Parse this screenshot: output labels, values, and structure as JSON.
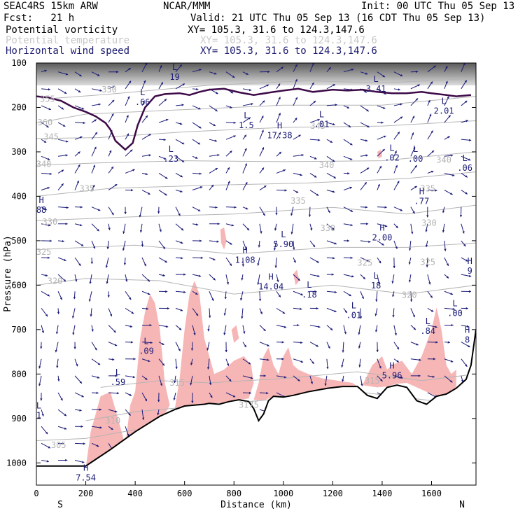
{
  "header": {
    "model": "SEAC4RS 15km ARW",
    "org": "NCAR/MMM",
    "init": "Init: 00 UTC Thu 05 Sep 13",
    "fcst": "Fcst:   21 h",
    "valid": "Valid: 21 UTC Thu 05 Sep 13 (16 CDT Thu 05 Sep 13)",
    "fields": [
      {
        "name": "Potential vorticity",
        "xy": "XY= 105.3, 31.6 to 124.3,147.6"
      },
      {
        "name": "Potential temperature",
        "xy": "XY= 105.3, 31.6 to 124.3,147.6"
      },
      {
        "name": "Horizontal wind speed",
        "xy": "XY= 105.3, 31.6 to 124.3,147.6"
      }
    ]
  },
  "colors": {
    "pv_contour": "#3d0a48",
    "theta_contour": "#b4b4b4",
    "wind_vectors": "#1a1a78",
    "shading": "#f7b6b6",
    "terrain": "#000000"
  },
  "chart_data": {
    "type": "line",
    "xlabel": "Distance (km)",
    "ylabel": "Pressure (hPa)",
    "xlim": [
      0,
      1780
    ],
    "ylim": [
      1050,
      100
    ],
    "x_ticks": [
      "0",
      "200",
      "400",
      "600",
      "800",
      "1000",
      "1200",
      "1400",
      "1600"
    ],
    "y_ticks": [
      "100",
      "200",
      "300",
      "400",
      "500",
      "600",
      "700",
      "800",
      "900",
      "1000"
    ],
    "end_labels": {
      "left": "S",
      "right": "N"
    },
    "theta_contours": [
      {
        "label": "355",
        "points": [
          [
            60,
            180
          ],
          [
            300,
            170
          ],
          [
            700,
            150
          ],
          [
            1100,
            140
          ],
          [
            1400,
            145
          ],
          [
            1780,
            135
          ]
        ]
      },
      {
        "label": "350",
        "points": [
          [
            0,
            235
          ],
          [
            200,
            215
          ],
          [
            600,
            205
          ],
          [
            1000,
            195
          ],
          [
            1400,
            195
          ],
          [
            1780,
            175
          ]
        ]
      },
      {
        "label": "345",
        "points": [
          [
            0,
            270
          ],
          [
            250,
            268
          ],
          [
            600,
            255
          ],
          [
            1000,
            245
          ],
          [
            1400,
            242
          ],
          [
            1780,
            230
          ]
        ]
      },
      {
        "label": "340",
        "points": [
          [
            0,
            330
          ],
          [
            250,
            325
          ],
          [
            600,
            320
          ],
          [
            1000,
            322
          ],
          [
            1400,
            320
          ],
          [
            1780,
            300
          ]
        ]
      },
      {
        "label": "335",
        "points": [
          [
            0,
            400
          ],
          [
            300,
            382
          ],
          [
            700,
            375
          ],
          [
            1100,
            370
          ],
          [
            1500,
            360
          ],
          [
            1780,
            345
          ]
        ]
      },
      {
        "label": "330",
        "points": [
          [
            0,
            455
          ],
          [
            400,
            446
          ],
          [
            800,
            440
          ],
          [
            1200,
            425
          ],
          [
            1500,
            440
          ],
          [
            1780,
            420
          ]
        ]
      },
      {
        "label": "325",
        "points": [
          [
            0,
            520
          ],
          [
            400,
            510
          ],
          [
            800,
            530
          ],
          [
            1200,
            515
          ],
          [
            1500,
            515
          ],
          [
            1780,
            505
          ]
        ]
      },
      {
        "label": "320",
        "points": [
          [
            0,
            600
          ],
          [
            200,
            585
          ],
          [
            500,
            590
          ],
          [
            800,
            620
          ],
          [
            1200,
            600
          ],
          [
            1500,
            620
          ],
          [
            1780,
            600
          ]
        ]
      },
      {
        "label": "315",
        "points": [
          [
            260,
            830
          ],
          [
            500,
            815
          ],
          [
            700,
            820
          ],
          [
            1000,
            810
          ],
          [
            1300,
            795
          ],
          [
            1560,
            815
          ],
          [
            1780,
            800
          ]
        ]
      },
      {
        "label": "310",
        "points": [
          [
            200,
            905
          ],
          [
            400,
            885
          ],
          [
            700,
            870
          ],
          [
            1000,
            855
          ],
          [
            1300,
            840
          ],
          [
            1600,
            860
          ],
          [
            1780,
            850
          ]
        ]
      },
      {
        "label": "305",
        "points": [
          [
            0,
            950
          ],
          [
            200,
            945
          ],
          [
            400,
            925
          ]
        ]
      }
    ],
    "theta_labels": [
      {
        "text": "355",
        "x": 45,
        "y": 181
      },
      {
        "text": "350",
        "x": 295,
        "y": 160
      },
      {
        "text": "360",
        "x": 35,
        "y": 234
      },
      {
        "text": "345",
        "x": 60,
        "y": 266
      },
      {
        "text": "345",
        "x": 1140,
        "y": 242
      },
      {
        "text": "340",
        "x": 30,
        "y": 328
      },
      {
        "text": "340",
        "x": 1650,
        "y": 318
      },
      {
        "text": "340",
        "x": 1175,
        "y": 330
      },
      {
        "text": "335",
        "x": 205,
        "y": 383
      },
      {
        "text": "335",
        "x": 1060,
        "y": 410
      },
      {
        "text": "335",
        "x": 1585,
        "y": 383
      },
      {
        "text": "330",
        "x": 55,
        "y": 458
      },
      {
        "text": "330",
        "x": 1180,
        "y": 472
      },
      {
        "text": "330",
        "x": 1590,
        "y": 460
      },
      {
        "text": "325",
        "x": 30,
        "y": 525
      },
      {
        "text": "325",
        "x": 1330,
        "y": 550
      },
      {
        "text": "325",
        "x": 1585,
        "y": 548
      },
      {
        "text": "320",
        "x": 75,
        "y": 591
      },
      {
        "text": "320",
        "x": 1510,
        "y": 622
      },
      {
        "text": "315",
        "x": 570,
        "y": 820
      },
      {
        "text": "315",
        "x": 1360,
        "y": 815
      },
      {
        "text": "3175",
        "x": 860,
        "y": 870
      },
      {
        "text": "310",
        "x": 310,
        "y": 905
      },
      {
        "text": "305",
        "x": 90,
        "y": 960
      }
    ],
    "pv_contour": [
      [
        0,
        175
      ],
      [
        50,
        178
      ],
      [
        100,
        185
      ],
      [
        150,
        200
      ],
      [
        200,
        210
      ],
      [
        240,
        220
      ],
      [
        280,
        235
      ],
      [
        300,
        250
      ],
      [
        320,
        275
      ],
      [
        360,
        295
      ],
      [
        390,
        280
      ],
      [
        410,
        240
      ],
      [
        440,
        200
      ],
      [
        480,
        175
      ],
      [
        520,
        170
      ],
      [
        580,
        168
      ],
      [
        620,
        172
      ],
      [
        660,
        165
      ],
      [
        700,
        160
      ],
      [
        760,
        158
      ],
      [
        820,
        166
      ],
      [
        880,
        172
      ],
      [
        950,
        166
      ],
      [
        1000,
        162
      ],
      [
        1060,
        158
      ],
      [
        1120,
        165
      ],
      [
        1200,
        160
      ],
      [
        1260,
        162
      ],
      [
        1320,
        160
      ],
      [
        1380,
        165
      ],
      [
        1440,
        168
      ],
      [
        1500,
        168
      ],
      [
        1560,
        165
      ],
      [
        1600,
        168
      ],
      [
        1660,
        172
      ],
      [
        1700,
        175
      ],
      [
        1760,
        172
      ]
    ],
    "highs_lows": [
      {
        "kind": "L",
        "value": "19",
        "x": 560,
        "y": 128
      },
      {
        "kind": "L",
        "value": ".66",
        "x": 430,
        "y": 185
      },
      {
        "kind": "L",
        "value": "1.5",
        "x": 850,
        "y": 237
      },
      {
        "kind": "L",
        "value": "3.41",
        "x": 1375,
        "y": 155
      },
      {
        "kind": "L",
        "value": "2.01",
        "x": 1650,
        "y": 205
      },
      {
        "kind": "L",
        "value": ".01",
        "x": 1155,
        "y": 235
      },
      {
        "kind": "H",
        "value": "17.38",
        "x": 985,
        "y": 260
      },
      {
        "kind": "L",
        "value": ".23",
        "x": 545,
        "y": 313
      },
      {
        "kind": "L",
        "value": ".02",
        "x": 1440,
        "y": 310
      },
      {
        "kind": "L",
        "value": ".00",
        "x": 1535,
        "y": 313
      },
      {
        "kind": "L",
        "value": ".06",
        "x": 1735,
        "y": 333
      },
      {
        "kind": "H",
        "value": ".77",
        "x": 1560,
        "y": 408
      },
      {
        "kind": "H",
        "value": "88",
        "x": 20,
        "y": 428
      },
      {
        "kind": "H",
        "value": "2.00",
        "x": 1400,
        "y": 490
      },
      {
        "kind": "L",
        "value": "5.90",
        "x": 1000,
        "y": 505
      },
      {
        "kind": "H",
        "value": "1.08",
        "x": 845,
        "y": 540
      },
      {
        "kind": "L",
        "value": "18",
        "x": 1375,
        "y": 598
      },
      {
        "kind": "H",
        "value": "14.04",
        "x": 950,
        "y": 600
      },
      {
        "kind": "L",
        "value": ".18",
        "x": 1105,
        "y": 618
      },
      {
        "kind": "L",
        "value": ".01",
        "x": 1285,
        "y": 665
      },
      {
        "kind": "L",
        "value": ".84",
        "x": 1585,
        "y": 700
      },
      {
        "kind": "L",
        "value": ".00",
        "x": 1695,
        "y": 660
      },
      {
        "kind": "H",
        "value": "9",
        "x": 1755,
        "y": 565
      },
      {
        "kind": "H",
        "value": "8",
        "x": 1745,
        "y": 720
      },
      {
        "kind": "L",
        "value": ".09",
        "x": 445,
        "y": 745
      },
      {
        "kind": "H",
        "value": "5.96",
        "x": 1440,
        "y": 800
      },
      {
        "kind": "L",
        "value": ".59",
        "x": 330,
        "y": 815
      },
      {
        "kind": "L",
        "value": "1",
        "x": 10,
        "y": 890
      },
      {
        "kind": "H",
        "value": "7.54",
        "x": 200,
        "y": 1030
      }
    ],
    "terrain": [
      [
        0,
        1007
      ],
      [
        200,
        1007
      ],
      [
        300,
        970
      ],
      [
        400,
        930
      ],
      [
        500,
        895
      ],
      [
        560,
        880
      ],
      [
        600,
        872
      ],
      [
        640,
        870
      ],
      [
        680,
        868
      ],
      [
        700,
        866
      ],
      [
        740,
        868
      ],
      [
        780,
        862
      ],
      [
        820,
        858
      ],
      [
        860,
        862
      ],
      [
        880,
        878
      ],
      [
        900,
        905
      ],
      [
        920,
        890
      ],
      [
        940,
        860
      ],
      [
        960,
        850
      ],
      [
        1000,
        852
      ],
      [
        1040,
        848
      ],
      [
        1100,
        840
      ],
      [
        1180,
        832
      ],
      [
        1240,
        828
      ],
      [
        1300,
        828
      ],
      [
        1340,
        848
      ],
      [
        1380,
        855
      ],
      [
        1420,
        830
      ],
      [
        1460,
        825
      ],
      [
        1500,
        830
      ],
      [
        1540,
        860
      ],
      [
        1580,
        868
      ],
      [
        1620,
        850
      ],
      [
        1660,
        845
      ],
      [
        1700,
        832
      ],
      [
        1740,
        812
      ],
      [
        1760,
        780
      ],
      [
        1775,
        720
      ],
      [
        1780,
        700
      ]
    ],
    "shading_regions": [
      [
        [
          200,
          1010
        ],
        [
          220,
          930
        ],
        [
          260,
          850
        ],
        [
          300,
          840
        ],
        [
          320,
          880
        ],
        [
          360,
          960
        ],
        [
          380,
          870
        ],
        [
          400,
          840
        ],
        [
          420,
          720
        ],
        [
          440,
          660
        ],
        [
          460,
          620
        ],
        [
          480,
          640
        ],
        [
          500,
          700
        ],
        [
          520,
          820
        ],
        [
          540,
          870
        ],
        [
          520,
          890
        ],
        [
          480,
          915
        ],
        [
          420,
          940
        ],
        [
          360,
          965
        ],
        [
          300,
          970
        ],
        [
          240,
          1000
        ]
      ],
      [
        [
          560,
          880
        ],
        [
          580,
          810
        ],
        [
          600,
          700
        ],
        [
          620,
          620
        ],
        [
          640,
          590
        ],
        [
          660,
          620
        ],
        [
          680,
          720
        ],
        [
          700,
          760
        ],
        [
          720,
          800
        ],
        [
          760,
          790
        ],
        [
          800,
          770
        ],
        [
          840,
          760
        ],
        [
          870,
          780
        ],
        [
          880,
          820
        ],
        [
          860,
          855
        ],
        [
          820,
          858
        ],
        [
          760,
          865
        ],
        [
          700,
          866
        ],
        [
          640,
          870
        ],
        [
          600,
          872
        ]
      ],
      [
        [
          880,
          858
        ],
        [
          900,
          820
        ],
        [
          920,
          760
        ],
        [
          940,
          740
        ],
        [
          960,
          780
        ],
        [
          980,
          800
        ],
        [
          1000,
          760
        ],
        [
          1020,
          740
        ],
        [
          1040,
          780
        ],
        [
          1060,
          790
        ],
        [
          1100,
          800
        ],
        [
          1160,
          810
        ],
        [
          1220,
          815
        ],
        [
          1280,
          820
        ],
        [
          1300,
          828
        ],
        [
          1240,
          828
        ],
        [
          1180,
          832
        ],
        [
          1100,
          840
        ],
        [
          1040,
          848
        ],
        [
          960,
          850
        ],
        [
          920,
          860
        ]
      ],
      [
        [
          1320,
          825
        ],
        [
          1360,
          780
        ],
        [
          1400,
          760
        ],
        [
          1420,
          790
        ],
        [
          1440,
          780
        ],
        [
          1480,
          770
        ],
        [
          1520,
          800
        ],
        [
          1560,
          760
        ],
        [
          1600,
          700
        ],
        [
          1620,
          650
        ],
        [
          1640,
          700
        ],
        [
          1660,
          780
        ],
        [
          1680,
          800
        ],
        [
          1700,
          790
        ],
        [
          1700,
          832
        ],
        [
          1660,
          845
        ],
        [
          1620,
          850
        ],
        [
          1580,
          840
        ],
        [
          1540,
          830
        ],
        [
          1500,
          820
        ],
        [
          1460,
          822
        ],
        [
          1420,
          828
        ],
        [
          1380,
          830
        ]
      ],
      [
        [
          745,
          475
        ],
        [
          760,
          470
        ],
        [
          770,
          500
        ],
        [
          760,
          520
        ],
        [
          748,
          505
        ]
      ],
      [
        [
          790,
          700
        ],
        [
          810,
          690
        ],
        [
          820,
          720
        ],
        [
          800,
          730
        ]
      ],
      [
        [
          1040,
          575
        ],
        [
          1055,
          565
        ],
        [
          1065,
          590
        ],
        [
          1050,
          600
        ]
      ],
      [
        [
          1380,
          300
        ],
        [
          1395,
          295
        ],
        [
          1400,
          310
        ],
        [
          1385,
          315
        ]
      ]
    ]
  }
}
